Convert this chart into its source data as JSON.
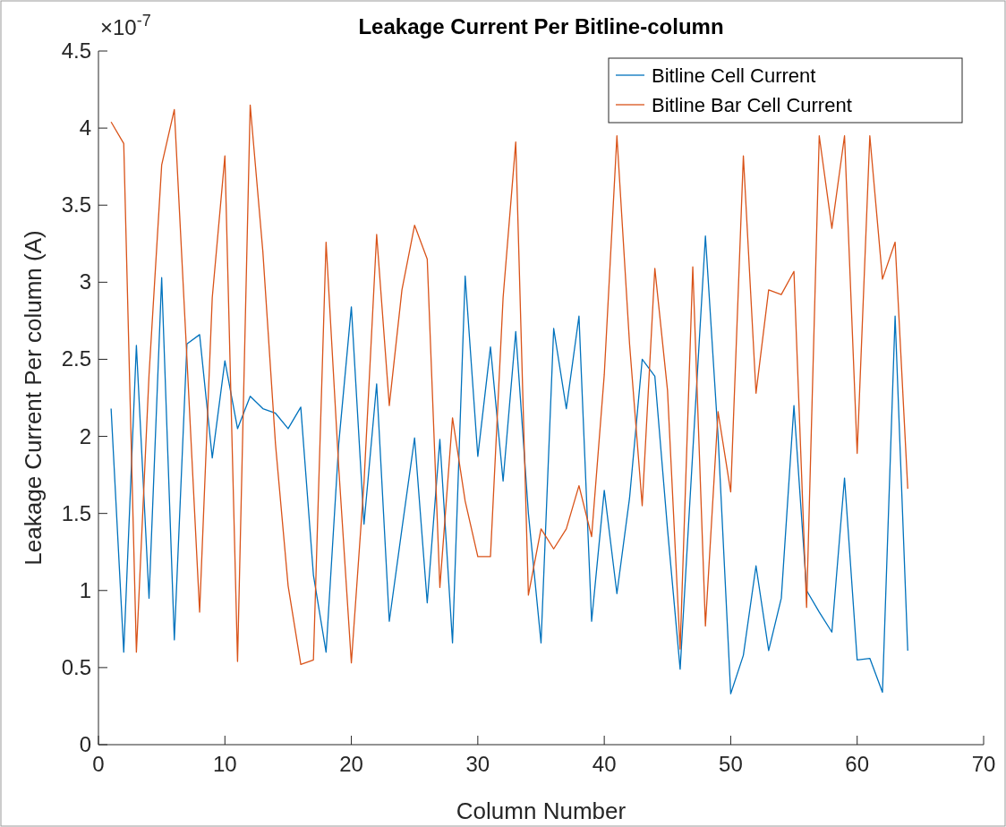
{
  "chart_data": {
    "type": "line",
    "title": "Leakage Current Per Bitline-column",
    "xlabel": "Column Number",
    "ylabel": "Leakage Current Per column (A)",
    "annotations": [
      "×10$^{-7}$"
    ],
    "x": [
      1,
      2,
      3,
      4,
      5,
      6,
      7,
      8,
      9,
      10,
      11,
      12,
      13,
      14,
      15,
      16,
      17,
      18,
      19,
      20,
      21,
      22,
      23,
      24,
      25,
      26,
      27,
      28,
      29,
      30,
      31,
      32,
      33,
      34,
      35,
      36,
      37,
      38,
      39,
      40,
      41,
      42,
      43,
      44,
      45,
      46,
      47,
      48,
      49,
      50,
      51,
      52,
      53,
      54,
      55,
      56,
      57,
      58,
      59,
      60,
      61,
      62,
      63,
      64
    ],
    "series": [
      {
        "name": "Bitline Cell Current",
        "color": "#0072bd",
        "values": [
          2.18,
          0.6,
          2.59,
          0.95,
          3.03,
          0.68,
          2.6,
          2.66,
          1.86,
          2.49,
          2.05,
          2.26,
          2.18,
          2.15,
          2.05,
          2.19,
          1.1,
          0.6,
          1.95,
          2.84,
          1.43,
          2.34,
          0.8,
          1.4,
          1.99,
          0.92,
          1.98,
          0.66,
          3.04,
          1.87,
          2.58,
          1.71,
          2.68,
          1.5,
          0.66,
          2.7,
          2.18,
          2.78,
          0.8,
          1.65,
          0.98,
          1.6,
          2.5,
          2.39,
          1.4,
          0.49,
          1.9,
          3.3,
          2.0,
          0.33,
          0.58,
          1.16,
          0.61,
          0.95,
          2.2,
          1.0,
          0.86,
          0.73,
          1.73,
          0.55,
          0.56,
          0.34,
          2.78,
          0.61
        ]
      },
      {
        "name": "Bitline Bar Cell Current",
        "color": "#d95319",
        "values": [
          4.04,
          3.9,
          0.6,
          2.4,
          3.76,
          4.12,
          2.5,
          0.86,
          2.9,
          3.82,
          0.54,
          4.15,
          3.2,
          1.95,
          1.03,
          0.52,
          0.55,
          3.26,
          1.8,
          0.53,
          1.7,
          3.31,
          2.2,
          2.95,
          3.37,
          3.15,
          1.02,
          2.12,
          1.58,
          1.22,
          1.22,
          2.9,
          3.91,
          0.97,
          1.4,
          1.27,
          1.4,
          1.68,
          1.35,
          2.4,
          3.95,
          2.6,
          1.55,
          3.09,
          2.3,
          0.62,
          3.1,
          0.77,
          2.16,
          1.64,
          3.82,
          2.28,
          2.95,
          2.92,
          3.07,
          0.89,
          3.95,
          3.35,
          3.95,
          1.89,
          3.95,
          3.02,
          3.26,
          1.66
        ]
      }
    ],
    "xlim": [
      0,
      70
    ],
    "xticks": [
      0,
      10,
      20,
      30,
      40,
      50,
      60,
      70
    ],
    "ylim": [
      0,
      4.5
    ],
    "yticks": [
      0,
      0.5,
      1,
      1.5,
      2,
      2.5,
      3,
      3.5,
      4,
      4.5
    ],
    "legend": "top right",
    "grid": false,
    "line_style": "solid",
    "marker": "none"
  }
}
